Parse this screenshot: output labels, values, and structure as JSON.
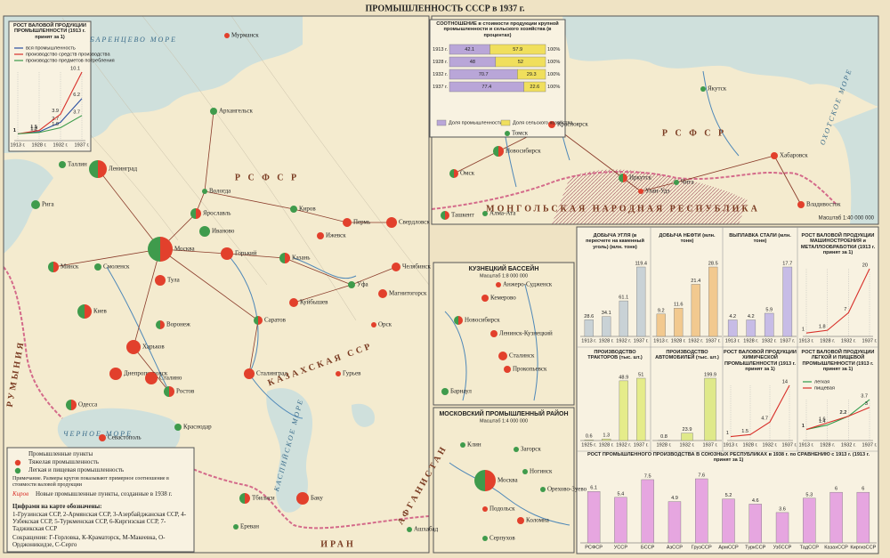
{
  "title": "ПРОМЫШЛЕННОСТЬ СССР в 1937 г.",
  "map": {
    "scale": "Масштаб 1:40 000 000",
    "labels": [
      "Р С Ф С Р",
      "Р С Ф С Р",
      "КАЗАХСКАЯ ССР",
      "МОНГОЛЬСКАЯ НАРОДНАЯ РЕСПУБЛИКА",
      "АФГАНИСТАН",
      "ИРАН",
      "РУМЫНИЯ",
      "ЧЕРНОЕ МОРЕ",
      "КАСПИЙСКОЕ МОРЕ",
      "БАРЕНЦЕВО МОРЕ",
      "ОХОТСКОЕ МОРЕ"
    ],
    "cities": [
      {
        "name": "Мурманск",
        "kind": "heavy"
      },
      {
        "name": "Архангельск",
        "kind": "light"
      },
      {
        "name": "Ленинград",
        "kind": "mixed"
      },
      {
        "name": "Таллин",
        "kind": "light"
      },
      {
        "name": "Рига",
        "kind": "light"
      },
      {
        "name": "Минск",
        "kind": "mixed"
      },
      {
        "name": "Смоленск",
        "kind": "light"
      },
      {
        "name": "Москва",
        "kind": "mixed"
      },
      {
        "name": "Ярославль",
        "kind": "mixed"
      },
      {
        "name": "Иваново",
        "kind": "light"
      },
      {
        "name": "Горький",
        "kind": "heavy"
      },
      {
        "name": "Казань",
        "kind": "mixed"
      },
      {
        "name": "Куйбышев",
        "kind": "heavy"
      },
      {
        "name": "Саратов",
        "kind": "mixed"
      },
      {
        "name": "Сталинград",
        "kind": "heavy"
      },
      {
        "name": "Киев",
        "kind": "mixed"
      },
      {
        "name": "Харьков",
        "kind": "heavy"
      },
      {
        "name": "Днепропетровск",
        "kind": "heavy"
      },
      {
        "name": "Сталино",
        "kind": "heavy"
      },
      {
        "name": "Одесса",
        "kind": "mixed"
      },
      {
        "name": "Ростов",
        "kind": "mixed"
      },
      {
        "name": "Краснодар",
        "kind": "light"
      },
      {
        "name": "Севастополь",
        "kind": "heavy"
      },
      {
        "name": "Тбилиси",
        "kind": "mixed"
      },
      {
        "name": "Баку",
        "kind": "heavy"
      },
      {
        "name": "Ереван",
        "kind": "light"
      },
      {
        "name": "Пермь",
        "kind": "heavy"
      },
      {
        "name": "Свердловск",
        "kind": "heavy"
      },
      {
        "name": "Челябинск",
        "kind": "heavy"
      },
      {
        "name": "Уфа",
        "kind": "light"
      },
      {
        "name": "Магнитогорск",
        "kind": "heavy"
      },
      {
        "name": "Орск",
        "kind": "heavy"
      },
      {
        "name": "Гурьев",
        "kind": "heavy"
      },
      {
        "name": "Воронеж",
        "kind": "mixed"
      },
      {
        "name": "Тула",
        "kind": "heavy"
      },
      {
        "name": "Вологда",
        "kind": "light"
      },
      {
        "name": "Киров",
        "kind": "light"
      },
      {
        "name": "Ижевск",
        "kind": "heavy"
      },
      {
        "name": "Ашхабад",
        "kind": "light"
      },
      {
        "name": "Омск",
        "kind": "mixed"
      },
      {
        "name": "Новосибирск",
        "kind": "mixed"
      },
      {
        "name": "Томск",
        "kind": "light"
      },
      {
        "name": "Красноярск",
        "kind": "heavy"
      },
      {
        "name": "Иркутск",
        "kind": "mixed"
      },
      {
        "name": "Улан-Удэ",
        "kind": "heavy"
      },
      {
        "name": "Чита",
        "kind": "light"
      },
      {
        "name": "Хабаровск",
        "kind": "heavy"
      },
      {
        "name": "Владивосток",
        "kind": "heavy"
      },
      {
        "name": "Алма-Ата",
        "kind": "light"
      },
      {
        "name": "Ташкент",
        "kind": "mixed"
      },
      {
        "name": "Якутск",
        "kind": "light"
      }
    ]
  },
  "insets": [
    {
      "title": "КУЗНЕЦКИЙ БАССЕЙН",
      "scale": "Масштаб 1:8 000 000",
      "cities": [
        {
          "name": "Анжеро-Судженск",
          "kind": "heavy"
        },
        {
          "name": "Кемерово",
          "kind": "heavy"
        },
        {
          "name": "Ленинск-Кузнецкий",
          "kind": "heavy"
        },
        {
          "name": "Сталинск",
          "kind": "heavy"
        },
        {
          "name": "Прокопьевск",
          "kind": "heavy"
        },
        {
          "name": "Новосибирск",
          "kind": "mixed"
        },
        {
          "name": "Барнаул",
          "kind": "light"
        }
      ]
    },
    {
      "title": "МОСКОВСКИЙ ПРОМЫШЛЕННЫЙ РАЙОН",
      "scale": "Масштаб 1:4 000 000",
      "cities": [
        {
          "name": "Москва",
          "kind": "mixed"
        },
        {
          "name": "Клин",
          "kind": "light"
        },
        {
          "name": "Загорск",
          "kind": "light"
        },
        {
          "name": "Ногинск",
          "kind": "light"
        },
        {
          "name": "Орехово-Зуево",
          "kind": "light"
        },
        {
          "name": "Подольск",
          "kind": "heavy"
        },
        {
          "name": "Коломна",
          "kind": "heavy"
        },
        {
          "name": "Серпухов",
          "kind": "light"
        }
      ]
    }
  ],
  "legend": {
    "header": "Промышленные пункты",
    "items": [
      {
        "label": "Тяжелая промышленность",
        "color": "#e2402c"
      },
      {
        "label": "Легкая и пищевая промышленность",
        "color": "#3f9b4c"
      }
    ],
    "note": "Примечание. Размеры кругов показывают примерное соотношение в стоимости валовой продукции",
    "new_sample": "Киров",
    "new_points": "Новые промышленные пункты, созданные в 1938 г.",
    "numbers_header": "Цифрами на карте обозначены:",
    "numbers": "1-Грузинская ССР, 2-Армянская ССР, 3-Азербайджанская ССР, 4-Узбекская ССР, 5-Туркменская ССР, 6-Киргизская ССР, 7-Таджикская ССР",
    "abbr": "Сокращения: Г-Горловка, К-Краматорск, М-Макеевка, О-Орджоникидзе, С-Серго"
  },
  "chart_data": [
    {
      "type": "line",
      "title": "РОСТ ВАЛОВОЙ ПРОДУКЦИИ ПРОМЫШЛЕННОСТИ (1913 г. принят за 1)",
      "categories": [
        "1913 г.",
        "1928 г.",
        "1932 г.",
        "1937 г."
      ],
      "series": [
        {
          "name": "вся промышленность",
          "color": "#2a4fa0",
          "values": [
            1,
            1.3,
            2.7,
            6.2
          ]
        },
        {
          "name": "производство средств производства",
          "color": "#d8302a",
          "values": [
            1,
            1.5,
            3.9,
            10.1
          ]
        },
        {
          "name": "производство предметов потребления",
          "color": "#3a9a48",
          "values": [
            1,
            1.2,
            1.9,
            3.7
          ]
        }
      ]
    },
    {
      "type": "stacked_bar",
      "title": "СООТНОШЕНИЕ в стоимости продукции крупной промышленности и сельского хозяйства (в процентах)",
      "categories": [
        "1913 г.",
        "1928 г.",
        "1932 г.",
        "1937 г."
      ],
      "series": [
        {
          "name": "Доля промышленности",
          "color": "#b9a6d8",
          "values": [
            42.1,
            48,
            70.7,
            77.4
          ]
        },
        {
          "name": "Доля сельского хозяйства",
          "color": "#f0df5c",
          "values": [
            57.9,
            52,
            29.3,
            22.6
          ]
        }
      ],
      "total_labels": [
        "100%",
        "100%",
        "100%",
        "100%"
      ]
    },
    {
      "type": "bar",
      "title": "ДОБЫЧА УГЛЯ (в пересчете на каменный уголь) (млн. тонн)",
      "color": "#c9d2d6",
      "categories": [
        "1913 г.",
        "1928 г.",
        "1932 г.",
        "1937 г."
      ],
      "values": [
        28.6,
        34.1,
        61.1,
        119.4
      ]
    },
    {
      "type": "bar",
      "title": "ДОБЫЧА НЕФТИ (млн. тонн)",
      "color": "#f2c98f",
      "categories": [
        "1913 г.",
        "1928 г.",
        "1932 г.",
        "1937 г."
      ],
      "values": [
        9.2,
        11.6,
        21.4,
        28.5
      ]
    },
    {
      "type": "bar",
      "title": "ВЫПЛАВКА СТАЛИ (млн. тонн)",
      "color": "#c7bce6",
      "categories": [
        "1913 г.",
        "1928 г.",
        "1932 г.",
        "1937 г."
      ],
      "values": [
        4.2,
        4.2,
        5.9,
        17.7
      ]
    },
    {
      "type": "line",
      "title": "РОСТ ВАЛОВОЙ ПРОДУКЦИИ МАШИНОСТРОЕНИЯ и МЕТАЛЛООБРАБОТКИ (1913 г. принят за 1)",
      "color": "#d8302a",
      "categories": [
        "1913 г.",
        "1928 г.",
        "1932 г.",
        "1937 г."
      ],
      "values": [
        1,
        1.8,
        7,
        20
      ]
    },
    {
      "type": "bar",
      "title": "ПРОИЗВОДСТВО ТРАКТОРОВ (тыс. шт.)",
      "color": "#e5ec8a",
      "categories": [
        "1925 г.",
        "1928 г.",
        "1932 г.",
        "1937 г."
      ],
      "values": [
        0.6,
        1.3,
        48.9,
        51
      ]
    },
    {
      "type": "bar",
      "title": "ПРОИЗВОДСТВО АВТОМОБИЛЕЙ (тыс. шт.)",
      "color": "#dfe98a",
      "categories": [
        "1928 г.",
        "1932 г.",
        "1937 г."
      ],
      "values": [
        0.8,
        23.9,
        199.9
      ]
    },
    {
      "type": "line",
      "title": "РОСТ ВАЛОВОЙ ПРОДУКЦИИ ХИМИЧЕСКОЙ ПРОМЫШЛЕННОСТИ (1913 г. принят за 1)",
      "color": "#d8302a",
      "categories": [
        "1913 г.",
        "1928 г.",
        "1932 г.",
        "1937 г."
      ],
      "values": [
        1,
        1.5,
        4.7,
        14
      ]
    },
    {
      "type": "line",
      "title": "РОСТ ВАЛОВОЙ ПРОДУКЦИИ ЛЕГКОЙ И ПИЩЕВОЙ ПРОМЫШЛЕННОСТИ (1913 г. принят за 1)",
      "categories": [
        "1913 г.",
        "1928 г.",
        "1932 г.",
        "1937 г."
      ],
      "series": [
        {
          "name": "легкая",
          "color": "#2e9a4a",
          "values": [
            1,
            1.4,
            2.2,
            3.7
          ]
        },
        {
          "name": "пищевая",
          "color": "#d8302a",
          "values": [
            1,
            1.6,
            2.2,
            3
          ]
        }
      ]
    },
    {
      "type": "bar",
      "title": "РОСТ ПРОМЫШЛЕННОГО ПРОИЗВОДСТВА В СОЮЗНЫХ РЕСПУБЛИКАХ в 1938 г. по СРАВНЕНИЮ с 1913 г. (1913 г. принят за 1)",
      "color": "#e6a6e0",
      "categories": [
        "РСФСР",
        "УССР",
        "БССР",
        "АзССР",
        "ГрузССР",
        "АрмССР",
        "ТуркССР",
        "УзбССР",
        "ТадССР",
        "КазахССР",
        "КиргизССР"
      ],
      "values": [
        6.1,
        5.4,
        7.5,
        4.9,
        7.6,
        5.2,
        4.6,
        3.6,
        5.3,
        6,
        6
      ]
    }
  ]
}
